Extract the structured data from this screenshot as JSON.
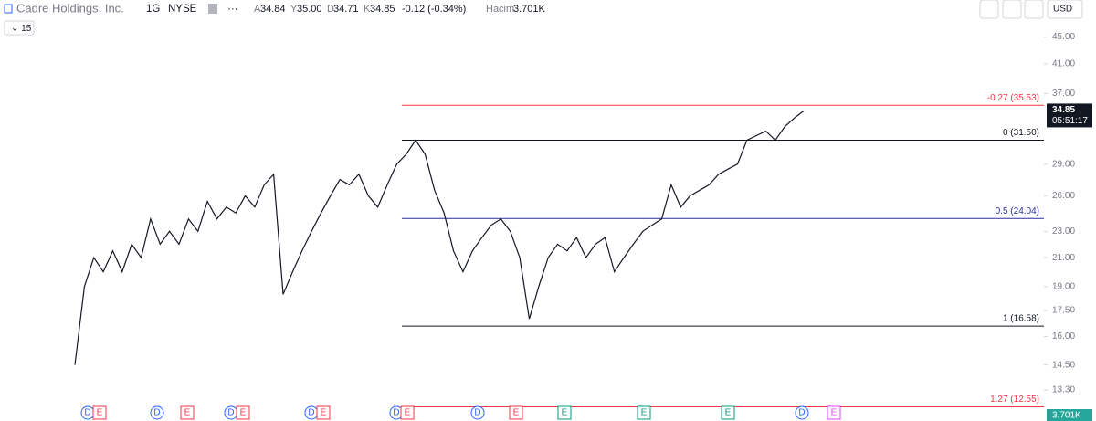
{
  "header": {
    "symbol": "Cadre Holdings, Inc.",
    "interval": "1G",
    "exchange": "NYSE",
    "ohlc": [
      {
        "key": "A",
        "value": "34.84"
      },
      {
        "key": "Y",
        "value": "35.00"
      },
      {
        "key": "D",
        "value": "34.71"
      },
      {
        "key": "K",
        "value": "34.85"
      }
    ],
    "change": "-0.12 (-0.34%)",
    "volume_label": "Hacim",
    "volume": "3.701K",
    "currency": "USD",
    "indicator_count": "15"
  },
  "events": [
    "D",
    "E",
    "D",
    "E",
    "D",
    "E",
    "D",
    "E",
    "D",
    "E",
    "D",
    "E",
    "E",
    "E",
    "E",
    "D",
    "E"
  ],
  "chart_data": {
    "type": "line",
    "log_scale": true,
    "color": "#131722",
    "ylim": [
      11.95,
      51.1
    ],
    "yticks": [
      {
        "value": 45,
        "label": "45.00"
      },
      {
        "value": 41,
        "label": "41.00"
      },
      {
        "value": 37,
        "label": "37.00"
      },
      {
        "value": 29,
        "label": "29.00"
      },
      {
        "value": 26,
        "label": "26.00"
      },
      {
        "value": 23,
        "label": "23.00"
      },
      {
        "value": 21,
        "label": "21.00"
      },
      {
        "value": 19,
        "label": "19.00"
      },
      {
        "value": 17.5,
        "label": "17.50"
      },
      {
        "value": 16,
        "label": "16.00"
      },
      {
        "value": 14.5,
        "label": "14.50"
      },
      {
        "value": 13.3,
        "label": "13.30"
      }
    ],
    "series": [
      {
        "name": "Cadre Holdings, Inc.",
        "color": "#131722",
        "values": [
          14.5,
          19,
          21,
          20,
          21.5,
          20,
          22,
          21,
          24,
          22,
          23,
          22,
          24,
          23,
          25.5,
          24,
          25,
          24.5,
          26,
          25,
          27,
          28,
          18.5,
          20,
          21.5,
          23,
          24.5,
          26,
          27.5,
          27,
          28,
          26,
          25,
          27,
          29,
          30,
          31.5,
          30,
          26.5,
          24.5,
          21.5,
          20,
          21.5,
          22.5,
          23.5,
          24,
          23,
          21,
          17,
          19,
          21,
          22,
          21.5,
          22.5,
          21,
          22,
          22.5,
          20,
          21,
          22,
          23,
          23.5,
          24,
          27,
          25,
          26,
          26.5,
          27,
          28,
          28.5,
          29,
          31.5,
          32,
          32.5,
          31.5,
          33,
          34,
          34.85
        ]
      }
    ],
    "last_price": 34.85,
    "countdown": "05:51:17",
    "last_volume": "3.701K",
    "fib_levels": [
      {
        "value": 35.53,
        "label": "-0.27 (35.53)",
        "color": "#f23645"
      },
      {
        "value": 31.5,
        "label": "0 (31.50)",
        "color": "#131722"
      },
      {
        "value": 24.04,
        "label": "0.5 (24.04)",
        "color": "#2a2e9e"
      },
      {
        "value": 16.58,
        "label": "1 (16.58)",
        "color": "#131722"
      },
      {
        "value": 12.55,
        "label": "1.27 (12.55)",
        "color": "#f23645"
      }
    ]
  }
}
